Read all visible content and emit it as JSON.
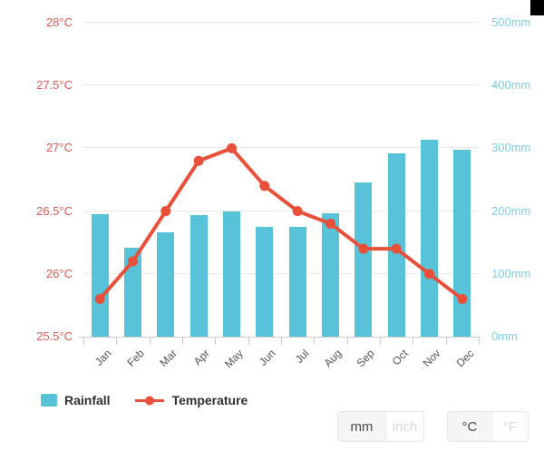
{
  "chart_data": {
    "type": "combo",
    "categories": [
      "Jan",
      "Feb",
      "Mar",
      "Apr",
      "May",
      "Jun",
      "Jul",
      "Aug",
      "Sep",
      "Oct",
      "Nov",
      "Dec"
    ],
    "series": [
      {
        "name": "Rainfall",
        "type": "bar",
        "axis": "right",
        "color": "#57c2d8",
        "values": [
          195,
          142,
          166,
          193,
          200,
          175,
          175,
          197,
          246,
          292,
          314,
          298
        ]
      },
      {
        "name": "Temperature",
        "type": "line",
        "axis": "left",
        "color": "#e8503a",
        "values": [
          25.8,
          26.1,
          26.5,
          26.9,
          27.0,
          26.7,
          26.5,
          26.4,
          26.2,
          26.2,
          26.0,
          25.8
        ]
      }
    ],
    "title": "",
    "xlabel": "",
    "left_axis": {
      "unit": "°C",
      "min": 25.5,
      "max": 28,
      "ticks": [
        "25.5°C",
        "26°C",
        "26.5°C",
        "27°C",
        "27.5°C",
        "28°C"
      ],
      "label_color": "#dd5a4e"
    },
    "right_axis": {
      "unit": "mm",
      "min": 0,
      "max": 500,
      "ticks": [
        "0mm",
        "100mm",
        "200mm",
        "300mm",
        "400mm",
        "500mm"
      ],
      "label_color": "#7bcfe1"
    },
    "grid": true,
    "legend_position": "bottom-left"
  },
  "legend": {
    "items": [
      {
        "label": "Rainfall",
        "marker": "square",
        "color": "#57c2d8"
      },
      {
        "label": "Temperature",
        "marker": "line-dot",
        "color": "#e8503a"
      }
    ]
  },
  "controls": {
    "rain_units": {
      "options": [
        "mm",
        "inch"
      ],
      "active": "mm"
    },
    "temp_units": {
      "options": [
        "°C",
        "°F"
      ],
      "active": "°C"
    }
  }
}
